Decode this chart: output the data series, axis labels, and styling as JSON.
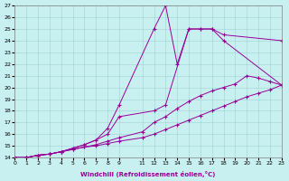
{
  "xlabel": "Windchill (Refroidissement éolien,°C)",
  "bg_color": "#c8f0f0",
  "line_color": "#990099",
  "xlim": [
    0,
    23
  ],
  "ylim": [
    14,
    27
  ],
  "xticks": [
    0,
    1,
    2,
    3,
    4,
    5,
    6,
    7,
    8,
    9,
    11,
    12,
    13,
    14,
    15,
    16,
    17,
    18,
    19,
    20,
    21,
    22,
    23
  ],
  "yticks": [
    14,
    15,
    16,
    17,
    18,
    19,
    20,
    21,
    22,
    23,
    24,
    25,
    26,
    27
  ],
  "series": [
    {
      "x": [
        0,
        1,
        2,
        3,
        4,
        5,
        6,
        7,
        8,
        9,
        12,
        13,
        14,
        15,
        16,
        17,
        18,
        23
      ],
      "y": [
        14,
        14,
        14.2,
        14.3,
        14.5,
        14.8,
        15.1,
        15.5,
        16.5,
        18.5,
        25.0,
        27.0,
        22.0,
        25.0,
        25.0,
        25.0,
        24.0,
        20.2
      ]
    },
    {
      "x": [
        0,
        1,
        2,
        3,
        4,
        5,
        6,
        7,
        8,
        9,
        12,
        13,
        15,
        16,
        17,
        18,
        23
      ],
      "y": [
        14,
        14,
        14.2,
        14.3,
        14.5,
        14.8,
        15.1,
        15.5,
        16.0,
        17.5,
        18.0,
        18.5,
        25.0,
        25.0,
        25.0,
        24.5,
        24.0
      ]
    },
    {
      "x": [
        0,
        1,
        2,
        3,
        4,
        5,
        6,
        7,
        8,
        9,
        11,
        12,
        13,
        14,
        15,
        16,
        17,
        18,
        19,
        20,
        21,
        22,
        23
      ],
      "y": [
        14,
        14,
        14.2,
        14.3,
        14.5,
        14.7,
        14.9,
        15.1,
        15.4,
        15.7,
        16.2,
        17.0,
        17.5,
        18.2,
        18.8,
        19.3,
        19.7,
        20.0,
        20.3,
        21.0,
        20.8,
        20.5,
        20.2
      ]
    },
    {
      "x": [
        0,
        1,
        2,
        3,
        4,
        5,
        6,
        7,
        8,
        9,
        11,
        12,
        13,
        14,
        15,
        16,
        17,
        18,
        19,
        20,
        21,
        22,
        23
      ],
      "y": [
        14,
        14,
        14.2,
        14.3,
        14.5,
        14.7,
        14.9,
        15.0,
        15.2,
        15.4,
        15.7,
        16.0,
        16.4,
        16.8,
        17.2,
        17.6,
        18.0,
        18.4,
        18.8,
        19.2,
        19.5,
        19.8,
        20.2
      ]
    }
  ]
}
